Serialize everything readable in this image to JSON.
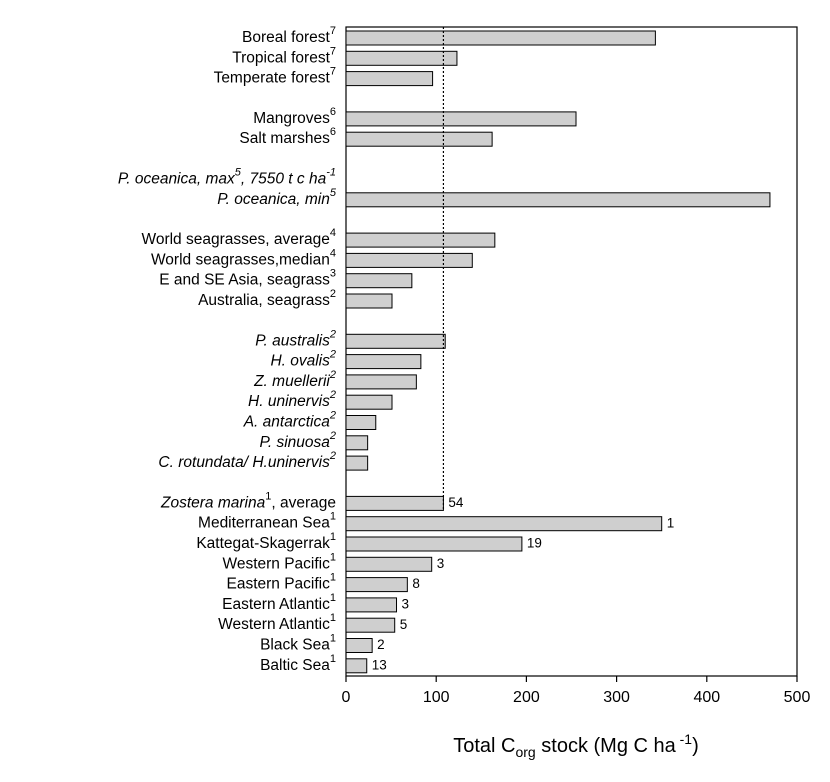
{
  "chart_data": {
    "type": "bar",
    "orientation": "horizontal",
    "title": "",
    "xlabel": {
      "prefix": "Total C",
      "sub": "org",
      "suffix": " stock (Mg C ha",
      "sup": " -1",
      "close": ")"
    },
    "xlim": [
      0,
      500
    ],
    "xticks": [
      "0",
      "100",
      "200",
      "300",
      "400",
      "500"
    ],
    "reference_line": {
      "value": 108,
      "style": "dotted"
    },
    "groups": [
      {
        "items": [
          {
            "label": "Boreal forest",
            "sup": "7",
            "italic": false,
            "value": 343,
            "n": null
          },
          {
            "label": "Tropical forest",
            "sup": "7",
            "italic": false,
            "value": 123,
            "n": null
          },
          {
            "label": "Temperate forest",
            "sup": "7",
            "italic": false,
            "value": 96,
            "n": null
          }
        ]
      },
      {
        "items": [
          {
            "label": "Mangroves",
            "sup": "6",
            "italic": false,
            "value": 255,
            "n": null
          },
          {
            "label": "Salt marshes",
            "sup": "6",
            "italic": false,
            "value": 162,
            "n": null
          }
        ]
      },
      {
        "items": [
          {
            "label": "P. oceanica, max",
            "sup": "5",
            "suffix": ", 7550 t c ha",
            "suffix_sup": "-1",
            "italic": true,
            "value": null,
            "n": null
          },
          {
            "label": "P. oceanica, min",
            "sup": "5",
            "italic": true,
            "value": 470,
            "n": null
          }
        ]
      },
      {
        "items": [
          {
            "label": "World seagrasses, average",
            "sup": "4",
            "italic": false,
            "value": 165,
            "n": null
          },
          {
            "label": "World seagrasses,median",
            "sup": "4",
            "italic": false,
            "value": 140,
            "n": null
          },
          {
            "label": "E and SE Asia, seagrass",
            "sup": "3",
            "italic": false,
            "value": 73,
            "n": null
          },
          {
            "label": "Australia, seagrass",
            "sup": "2",
            "italic": false,
            "value": 51,
            "n": null
          }
        ]
      },
      {
        "items": [
          {
            "label": "P. australis",
            "sup": "2",
            "italic": true,
            "value": 110,
            "n": null
          },
          {
            "label": "H. ovalis",
            "sup": "2",
            "italic": true,
            "value": 83,
            "n": null
          },
          {
            "label": "Z. muellerii",
            "sup": "2",
            "italic": true,
            "value": 78,
            "n": null
          },
          {
            "label": "H. uninervis",
            "sup": "2",
            "italic": true,
            "value": 51,
            "n": null
          },
          {
            "label": "A. antarctica",
            "sup": "2",
            "italic": true,
            "value": 33,
            "n": null
          },
          {
            "label": "P. sinuosa",
            "sup": "2",
            "italic": true,
            "value": 24,
            "n": null
          },
          {
            "label": "C. rotundata/ H.uninervis",
            "sup": "2",
            "italic": true,
            "value": 24,
            "n": null
          }
        ]
      },
      {
        "items": [
          {
            "label": "Zostera marina",
            "sup": "1",
            "suffix": ", average",
            "italic": "partial",
            "value": 108,
            "n": "54"
          },
          {
            "label": "Mediterranean Sea",
            "sup": "1",
            "italic": false,
            "value": 350,
            "n": "1"
          },
          {
            "label": "Kattegat-Skagerrak",
            "sup": "1",
            "italic": false,
            "value": 195,
            "n": "19"
          },
          {
            "label": "Western Pacific",
            "sup": "1",
            "italic": false,
            "value": 95,
            "n": "3"
          },
          {
            "label": "Eastern Pacific",
            "sup": "1",
            "italic": false,
            "value": 68,
            "n": "8"
          },
          {
            "label": "Eastern Atlantic",
            "sup": "1",
            "italic": false,
            "value": 56,
            "n": "3"
          },
          {
            "label": "Western Atlantic",
            "sup": "1",
            "italic": false,
            "value": 54,
            "n": "5"
          },
          {
            "label": "Black Sea",
            "sup": "1",
            "italic": false,
            "value": 29,
            "n": "2"
          },
          {
            "label": "Baltic Sea",
            "sup": "1",
            "italic": false,
            "value": 23,
            "n": "13"
          }
        ]
      }
    ]
  },
  "colors": {
    "bar_fill": "#cfcfcf",
    "bar_stroke": "#000000",
    "axis": "#000000"
  }
}
